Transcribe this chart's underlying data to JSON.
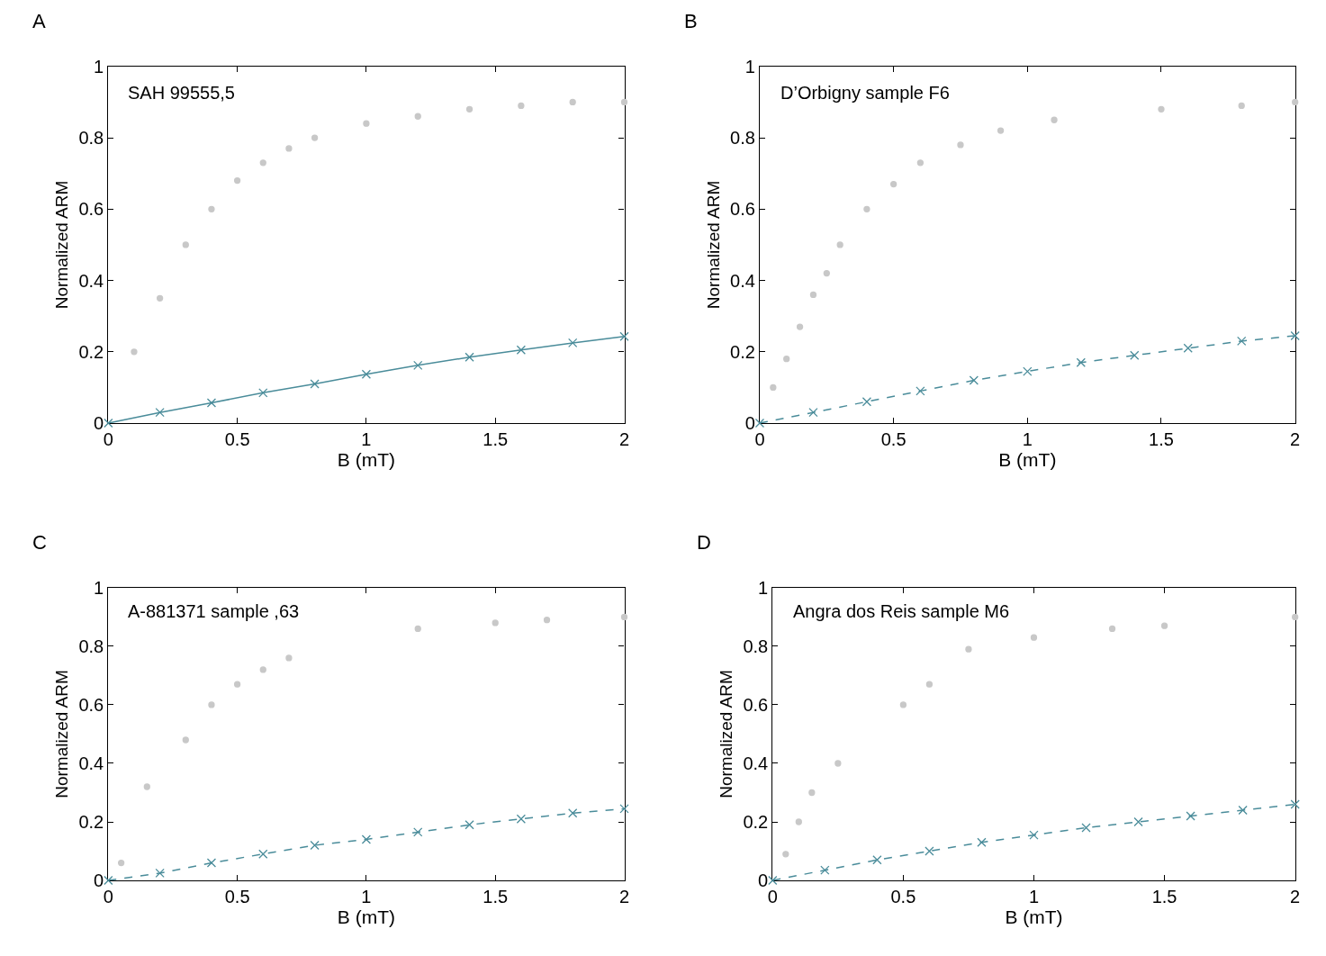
{
  "chart_data": [
    {
      "type": "line",
      "title": "A",
      "xlabel": "B (mT)",
      "ylabel": "Normalized ARM",
      "annotations": [
        "SAH 99555,5"
      ],
      "xlim": [
        0,
        2
      ],
      "ylim": [
        0,
        1
      ],
      "xticks": [
        0,
        0.5,
        1,
        1.5,
        2
      ],
      "yticks": [
        0,
        0.2,
        0.4,
        0.6,
        0.8,
        1
      ],
      "grid": false,
      "series": [
        {
          "type": "scatter",
          "color": "#c8c8c8",
          "marker": "circle",
          "x": [
            0.1,
            0.2,
            0.3,
            0.4,
            0.5,
            0.6,
            0.7,
            0.8,
            1.0,
            1.2,
            1.4,
            1.6,
            1.8,
            2
          ],
          "values": [
            0.2,
            0.35,
            0.5,
            0.6,
            0.68,
            0.73,
            0.77,
            0.8,
            0.84,
            0.86,
            0.88,
            0.89,
            0.9,
            0.9
          ]
        },
        {
          "color": "#4a8c9a",
          "marker": "cross",
          "line_style": "solid",
          "x": [
            0,
            0.2,
            0.4,
            0.6,
            0.8,
            1,
            1.2,
            1.4,
            1.6,
            1.8,
            2
          ],
          "values": [
            0,
            0.03,
            0.057,
            0.085,
            0.11,
            0.137,
            0.162,
            0.185,
            0.205,
            0.225,
            0.243
          ]
        }
      ]
    },
    {
      "type": "line",
      "title": "B",
      "xlabel": "B (mT)",
      "ylabel": "Normalized ARM",
      "annotations": [
        "D’Orbigny sample F6"
      ],
      "xlim": [
        0,
        2
      ],
      "ylim": [
        0,
        1
      ],
      "xticks": [
        0,
        0.5,
        1,
        1.5,
        2
      ],
      "yticks": [
        0,
        0.2,
        0.4,
        0.6,
        0.8,
        1
      ],
      "grid": false,
      "series": [
        {
          "type": "scatter",
          "color": "#c8c8c8",
          "marker": "circle",
          "x": [
            0.05,
            0.1,
            0.15,
            0.2,
            0.25,
            0.3,
            0.4,
            0.5,
            0.6,
            0.75,
            0.9,
            1.1,
            1.5,
            1.8,
            2
          ],
          "values": [
            0.1,
            0.18,
            0.27,
            0.36,
            0.42,
            0.5,
            0.6,
            0.67,
            0.73,
            0.78,
            0.82,
            0.85,
            0.88,
            0.89,
            0.9
          ]
        },
        {
          "color": "#4a8c9a",
          "marker": "cross",
          "line_style": "dashed",
          "x": [
            0,
            0.2,
            0.4,
            0.6,
            0.8,
            1,
            1.2,
            1.4,
            1.6,
            1.8,
            2
          ],
          "values": [
            0,
            0.03,
            0.06,
            0.09,
            0.12,
            0.145,
            0.17,
            0.19,
            0.21,
            0.23,
            0.245
          ]
        }
      ]
    },
    {
      "type": "line",
      "title": "C",
      "xlabel": "B (mT)",
      "ylabel": "Normalized ARM",
      "annotations": [
        "A-881371 sample ,63"
      ],
      "xlim": [
        0,
        2
      ],
      "ylim": [
        0,
        1
      ],
      "xticks": [
        0,
        0.5,
        1,
        1.5,
        2
      ],
      "yticks": [
        0,
        0.2,
        0.4,
        0.6,
        0.8,
        1
      ],
      "grid": false,
      "series": [
        {
          "type": "scatter",
          "color": "#c8c8c8",
          "marker": "circle",
          "x": [
            0.05,
            0.15,
            0.3,
            0.4,
            0.5,
            0.6,
            0.7,
            1.2,
            1.5,
            1.7,
            2
          ],
          "values": [
            0.06,
            0.32,
            0.48,
            0.6,
            0.67,
            0.72,
            0.76,
            0.86,
            0.88,
            0.89,
            0.9
          ]
        },
        {
          "color": "#4a8c9a",
          "marker": "cross",
          "line_style": "dashed",
          "x": [
            0,
            0.2,
            0.4,
            0.6,
            0.8,
            1,
            1.2,
            1.4,
            1.6,
            1.8,
            2
          ],
          "values": [
            0,
            0.025,
            0.06,
            0.09,
            0.12,
            0.14,
            0.165,
            0.19,
            0.21,
            0.23,
            0.245
          ]
        }
      ]
    },
    {
      "type": "line",
      "title": "D",
      "xlabel": "B (mT)",
      "ylabel": "Normalized ARM",
      "annotations": [
        "Angra dos Reis sample M6"
      ],
      "xlim": [
        0,
        2
      ],
      "ylim": [
        0,
        1
      ],
      "xticks": [
        0,
        0.5,
        1,
        1.5,
        2
      ],
      "yticks": [
        0,
        0.2,
        0.4,
        0.6,
        0.8,
        1
      ],
      "grid": false,
      "series": [
        {
          "type": "scatter",
          "color": "#c8c8c8",
          "marker": "circle",
          "x": [
            0.05,
            0.1,
            0.15,
            0.25,
            0.5,
            0.6,
            0.75,
            1.0,
            1.3,
            1.5,
            2
          ],
          "values": [
            0.09,
            0.2,
            0.3,
            0.4,
            0.6,
            0.67,
            0.79,
            0.83,
            0.86,
            0.87,
            0.9
          ]
        },
        {
          "color": "#4a8c9a",
          "marker": "cross",
          "line_style": "dashed",
          "x": [
            0,
            0.2,
            0.4,
            0.6,
            0.8,
            1,
            1.2,
            1.4,
            1.6,
            1.8,
            2
          ],
          "values": [
            0,
            0.035,
            0.07,
            0.1,
            0.13,
            0.155,
            0.18,
            0.2,
            0.22,
            0.24,
            0.26
          ]
        }
      ]
    }
  ]
}
